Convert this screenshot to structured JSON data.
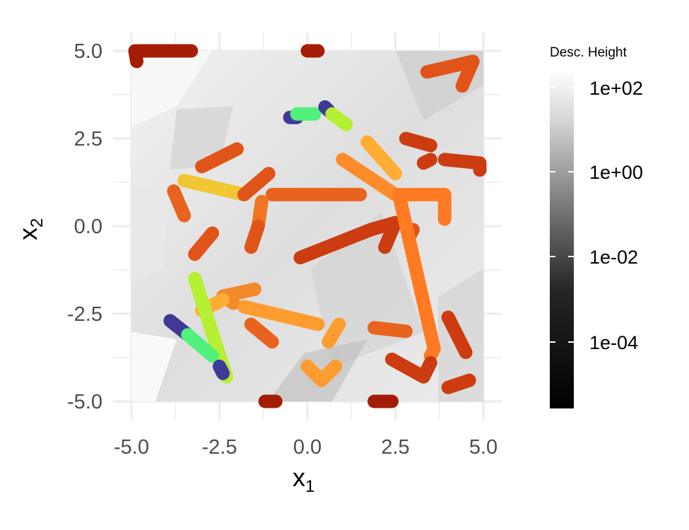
{
  "chart_data": {
    "type": "line",
    "xlim": [
      -5,
      5
    ],
    "ylim": [
      -5,
      5
    ],
    "x_ticks": [
      "-5.0",
      "-2.5",
      "0.0",
      "2.5",
      "5.0"
    ],
    "y_ticks": [
      "5.0",
      "2.5",
      "0.0",
      "-2.5",
      "-5.0"
    ],
    "xlabel_base": "x",
    "xlabel_sub": "1",
    "ylabel_base": "x",
    "ylabel_sub": "2",
    "grid": true,
    "legend": {
      "title": "Desc. Height",
      "position": "right",
      "scale": "log",
      "ticks": [
        "1e+02",
        "1e+00",
        "1e-02",
        "1e-04"
      ]
    },
    "series": [
      {
        "color": "#a51c05",
        "points": [
          [
            -4.8,
            5.0
          ],
          [
            -3.3,
            5.0
          ]
        ]
      },
      {
        "color": "#a51c05",
        "points": [
          [
            -4.9,
            5.0
          ],
          [
            -4.85,
            4.7
          ]
        ]
      },
      {
        "color": "#a51c05",
        "points": [
          [
            0.0,
            5.0
          ],
          [
            0.3,
            5.0
          ]
        ]
      },
      {
        "color": "#e0541a",
        "points": [
          [
            3.4,
            4.4
          ],
          [
            4.7,
            4.7
          ],
          [
            4.4,
            4.0
          ]
        ]
      },
      {
        "color": "#e0541a",
        "points": [
          [
            -3.0,
            1.7
          ],
          [
            -2.0,
            2.2
          ]
        ]
      },
      {
        "color": "#3e3a96",
        "points": [
          [
            -0.5,
            3.1
          ],
          [
            -0.3,
            3.1
          ]
        ]
      },
      {
        "color": "#52f07c",
        "points": [
          [
            -0.3,
            3.2
          ],
          [
            0.2,
            3.2
          ]
        ]
      },
      {
        "color": "#3e3a96",
        "points": [
          [
            0.5,
            3.4
          ],
          [
            0.6,
            3.3
          ]
        ]
      },
      {
        "color": "#b6f033",
        "points": [
          [
            0.7,
            3.2
          ],
          [
            1.1,
            2.9
          ]
        ]
      },
      {
        "color": "#cc3c10",
        "points": [
          [
            2.8,
            2.5
          ],
          [
            3.5,
            2.3
          ]
        ]
      },
      {
        "color": "#cc3c10",
        "points": [
          [
            3.3,
            1.8
          ],
          [
            3.5,
            1.9
          ]
        ]
      },
      {
        "color": "#cc3c10",
        "points": [
          [
            3.9,
            1.9
          ],
          [
            4.9,
            1.8
          ],
          [
            4.9,
            1.6
          ]
        ]
      },
      {
        "color": "#ffad33",
        "points": [
          [
            1.7,
            2.4
          ],
          [
            2.5,
            1.5
          ]
        ]
      },
      {
        "color": "#f0c733",
        "points": [
          [
            -3.5,
            1.3
          ],
          [
            -1.8,
            0.9
          ]
        ]
      },
      {
        "color": "#e0541a",
        "points": [
          [
            -1.8,
            0.9
          ],
          [
            -1.1,
            1.5
          ]
        ]
      },
      {
        "color": "#ff8c2a",
        "points": [
          [
            1.0,
            1.9
          ],
          [
            2.5,
            0.9
          ]
        ]
      },
      {
        "color": "#ff7a22",
        "points": [
          [
            2.7,
            0.9
          ],
          [
            3.9,
            0.9
          ],
          [
            3.9,
            0.2
          ]
        ]
      },
      {
        "color": "#e8631d",
        "points": [
          [
            -1.0,
            0.9
          ],
          [
            1.5,
            0.9
          ]
        ]
      },
      {
        "color": "#e8631d",
        "points": [
          [
            -3.8,
            1.0
          ],
          [
            -3.5,
            0.3
          ]
        ]
      },
      {
        "color": "#f07521",
        "points": [
          [
            -1.3,
            0.7
          ],
          [
            -1.4,
            0.0
          ]
        ]
      },
      {
        "color": "#e0541a",
        "points": [
          [
            -1.4,
            0.0
          ],
          [
            -1.6,
            -0.6
          ]
        ]
      },
      {
        "color": "#e0541a",
        "points": [
          [
            -2.7,
            -0.2
          ],
          [
            -3.2,
            -0.8
          ]
        ]
      },
      {
        "color": "#cc3c10",
        "points": [
          [
            -0.2,
            -0.9
          ],
          [
            1.8,
            -0.1
          ],
          [
            2.5,
            0.1
          ],
          [
            2.2,
            -0.6
          ]
        ]
      },
      {
        "color": "#e0541a",
        "points": [
          [
            3.0,
            -0.1
          ],
          [
            2.9,
            -0.3
          ]
        ]
      },
      {
        "color": "#ff7a22",
        "points": [
          [
            2.6,
            0.9
          ],
          [
            3.6,
            -3.5
          ],
          [
            3.5,
            -3.7
          ]
        ]
      },
      {
        "color": "#f08a2b",
        "points": [
          [
            -2.1,
            -2.2
          ],
          [
            -2.4,
            -2.0
          ],
          [
            -1.5,
            -1.8
          ]
        ]
      },
      {
        "color": "#ff9c30",
        "points": [
          [
            -1.8,
            -2.3
          ],
          [
            0.3,
            -2.8
          ]
        ]
      },
      {
        "color": "#ffad33",
        "points": [
          [
            -3.0,
            -2.4
          ],
          [
            -2.4,
            -2.1
          ]
        ]
      },
      {
        "color": "#b6f033",
        "points": [
          [
            -3.2,
            -1.5
          ],
          [
            -2.3,
            -4.3
          ]
        ]
      },
      {
        "color": "#3e3a96",
        "points": [
          [
            -3.9,
            -2.7
          ],
          [
            -3.4,
            -3.1
          ]
        ]
      },
      {
        "color": "#52f07c",
        "points": [
          [
            -3.4,
            -3.1
          ],
          [
            -2.7,
            -3.7
          ]
        ]
      },
      {
        "color": "#3e3a96",
        "points": [
          [
            -2.5,
            -4.0
          ],
          [
            -2.4,
            -4.2
          ]
        ]
      },
      {
        "color": "#ff9c30",
        "points": [
          [
            0.6,
            -3.3
          ],
          [
            0.9,
            -2.8
          ]
        ]
      },
      {
        "color": "#ff9c30",
        "points": [
          [
            0.0,
            -4.0
          ],
          [
            0.4,
            -4.4
          ],
          [
            0.8,
            -4.0
          ]
        ]
      },
      {
        "color": "#e8631d",
        "points": [
          [
            1.9,
            -2.9
          ],
          [
            2.8,
            -3.0
          ]
        ]
      },
      {
        "color": "#e8631d",
        "points": [
          [
            -1.0,
            -3.3
          ],
          [
            -1.6,
            -2.8
          ]
        ]
      },
      {
        "color": "#cc3c10",
        "points": [
          [
            2.4,
            -3.8
          ],
          [
            3.3,
            -4.3
          ],
          [
            3.5,
            -3.9
          ]
        ]
      },
      {
        "color": "#cc3c10",
        "points": [
          [
            4.0,
            -2.6
          ],
          [
            4.5,
            -3.6
          ]
        ]
      },
      {
        "color": "#cc3c10",
        "points": [
          [
            4.0,
            -4.6
          ],
          [
            4.6,
            -4.4
          ]
        ]
      },
      {
        "color": "#a51c05",
        "points": [
          [
            -1.2,
            -5.0
          ],
          [
            -0.9,
            -5.0
          ]
        ]
      },
      {
        "color": "#a51c05",
        "points": [
          [
            1.9,
            -5.0
          ],
          [
            2.4,
            -5.0
          ]
        ]
      }
    ]
  }
}
